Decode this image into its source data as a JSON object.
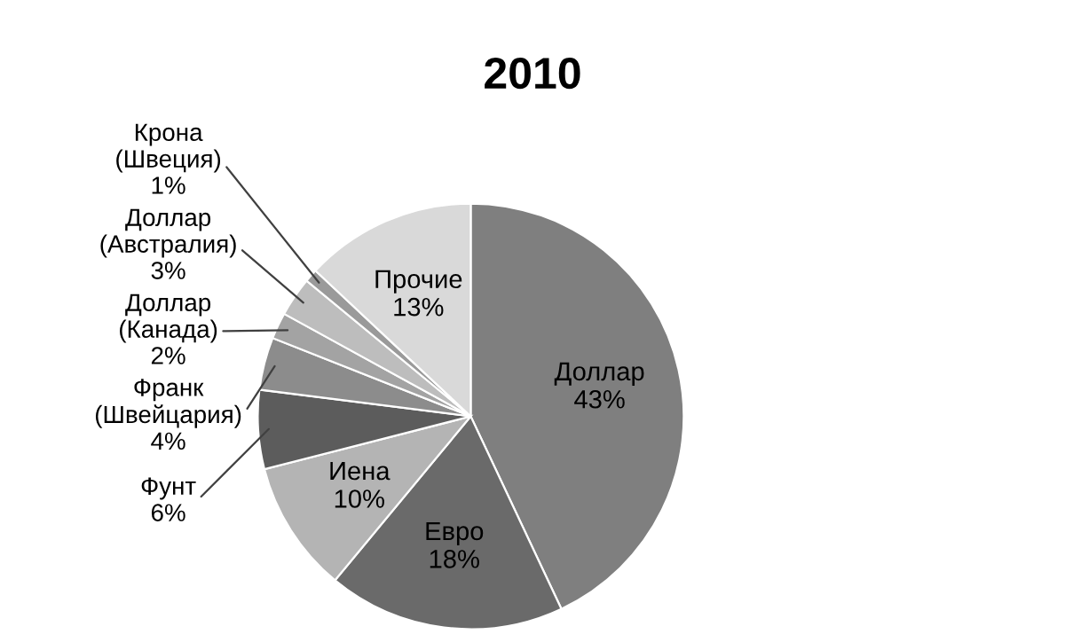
{
  "chart_data": {
    "type": "pie",
    "title": "2010",
    "categories": [
      "Доллар",
      "Евро",
      "Иена",
      "Фунт",
      "Франк\n(Швейцария)",
      "Доллар\n(Канада)",
      "Доллар\n(Австралия)",
      "Крона\n(Швеция)",
      "Прочие"
    ],
    "values": [
      43,
      18,
      10,
      6,
      4,
      2,
      3,
      1,
      13
    ],
    "colors": [
      "#7f7f7f",
      "#6a6a6a",
      "#b4b4b4",
      "#5c5c5c",
      "#8c8c8c",
      "#a3a3a3",
      "#bdbdbd",
      "#9a9a9a",
      "#d9d9d9"
    ],
    "value_labels": [
      "43%",
      "18%",
      "10%",
      "6%",
      "4%",
      "2%",
      "3%",
      "1%",
      "13%"
    ],
    "legend": false
  }
}
